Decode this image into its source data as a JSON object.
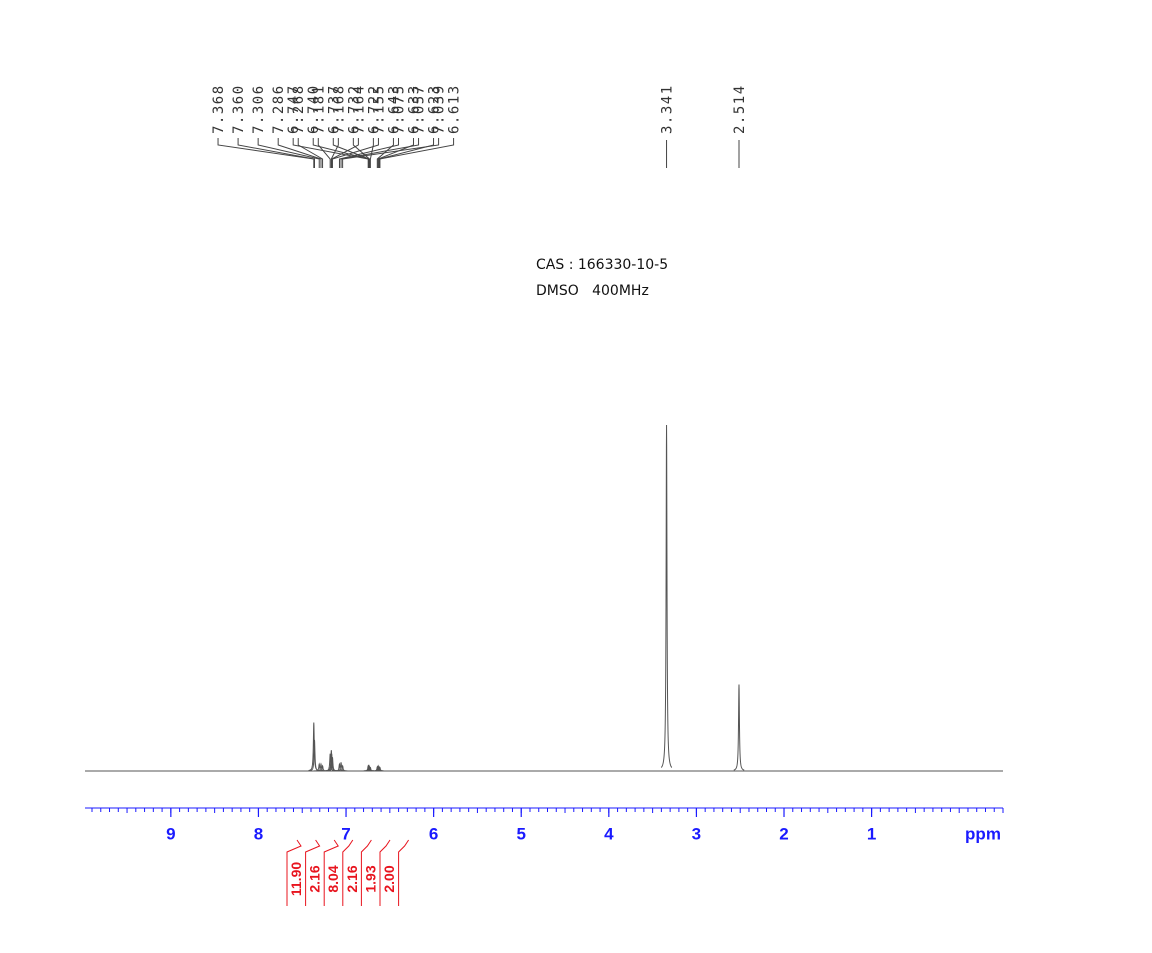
{
  "chart_data": {
    "type": "nmr",
    "annotations": [
      "CAS : 166330-10-5",
      "DMSO   400MHz"
    ],
    "x": [
      7.368,
      {
        "value": 7.36,
        "label": "7.360"
      },
      7.306,
      7.286,
      7.268,
      7.181,
      7.168,
      7.164,
      7.155,
      7.075,
      7.057,
      7.039,
      6.747,
      {
        "value": 6.74,
        "label": "6.740"
      },
      6.737,
      6.732,
      6.722,
      6.643,
      6.633,
      6.623,
      6.613,
      3.341,
      2.514
    ],
    "values": [
      14,
      9,
      2,
      2,
      1.5,
      5,
      6,
      5,
      4,
      2,
      2.5,
      1.5,
      1.5,
      1.5,
      1.5,
      1.2,
      1,
      1.2,
      1.5,
      1.2,
      1,
      100,
      25
    ],
    "color": "#555555",
    "xlim": [
      9.98,
      -0.5
    ],
    "ylim": [
      0,
      100
    ],
    "xticks": [
      9,
      8,
      7,
      6,
      5,
      4,
      3,
      2,
      1
    ],
    "xlabel": "ppm",
    "axis_color": "#1a1aff",
    "integrals": [
      {
        "value": 11.9,
        "label": "11.90"
      },
      2.16,
      8.04,
      2.16,
      1.93,
      {
        "value": 2,
        "label": "2.00"
      }
    ],
    "integral_color": "#e8141e"
  }
}
